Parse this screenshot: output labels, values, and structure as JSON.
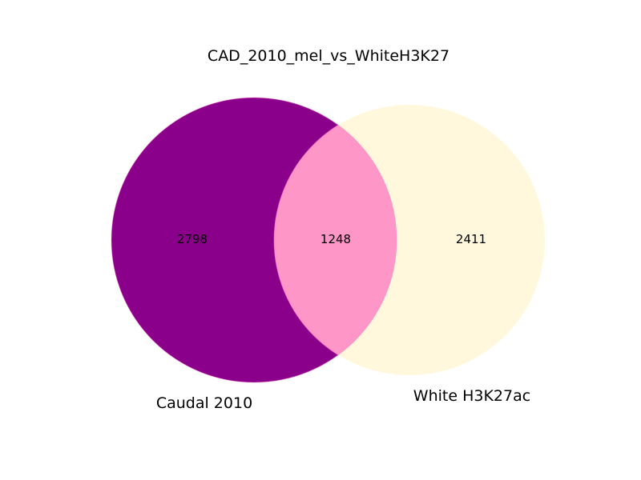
{
  "chart_data": {
    "type": "venn",
    "title": "CAD_2010_mel_vs_WhiteH3K27",
    "sets": [
      {
        "name": "Caudal 2010",
        "only_count": "2798",
        "color": "#8b008b"
      },
      {
        "name": "White H3K27ac",
        "only_count": "2411",
        "color": "#fff8dc"
      }
    ],
    "intersection": {
      "count": "1248",
      "color": "#ff96c8"
    },
    "values": {
      "A_only": 2798,
      "B_only": 2411,
      "A_and_B": 1248
    }
  }
}
